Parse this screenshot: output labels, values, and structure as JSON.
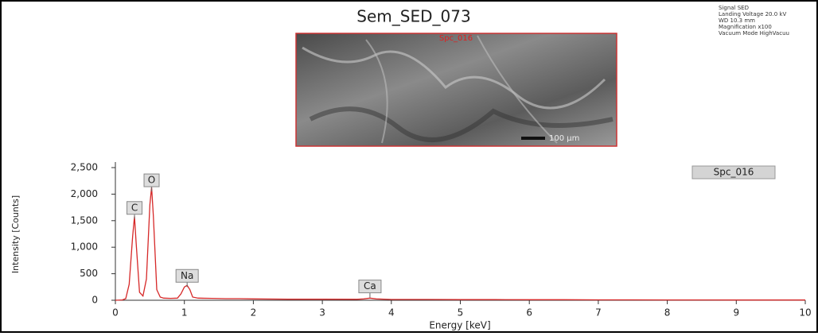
{
  "chart_data": {
    "type": "line",
    "title": "Sem_SED_073",
    "info": [
      "Signal SED",
      "Landing Voltage 20.0 kV",
      "WD 10.3 mm",
      "Magnification x100",
      "Vacuum Mode HighVacuu"
    ],
    "image_label": "Spc_016",
    "scale_bar": "100 µm",
    "x_label": "Energy [keV]",
    "y_label": "Intensity [Counts]",
    "x": [
      0,
      0.1,
      0.15,
      0.2,
      0.25,
      0.277,
      0.3,
      0.35,
      0.4,
      0.45,
      0.5,
      0.525,
      0.55,
      0.6,
      0.65,
      0.7,
      0.8,
      0.9,
      0.95,
      1.0,
      1.04,
      1.08,
      1.12,
      1.2,
      1.4,
      1.6,
      1.8,
      2.0,
      2.5,
      3.0,
      3.5,
      3.6,
      3.69,
      3.78,
      4.0,
      4.5,
      5.0,
      5.5,
      6.0,
      6.5,
      7.0,
      7.5,
      8.0,
      8.5,
      9.0,
      9.5,
      10.0
    ],
    "series": [
      {
        "name": "Spc_016",
        "color": "#d62828",
        "values": [
          0,
          5,
          30,
          300,
          1200,
          1580,
          1100,
          150,
          80,
          400,
          1800,
          2130,
          1600,
          200,
          60,
          40,
          35,
          40,
          120,
          250,
          280,
          200,
          60,
          40,
          35,
          30,
          30,
          25,
          20,
          20,
          18,
          25,
          40,
          25,
          15,
          15,
          12,
          12,
          10,
          10,
          8,
          8,
          6,
          6,
          5,
          5,
          5
        ]
      }
    ],
    "annotations": [
      {
        "text": "C",
        "x": 0.277,
        "y": 1740
      },
      {
        "text": "O",
        "x": 0.525,
        "y": 2260
      },
      {
        "text": "Na",
        "x": 1.04,
        "y": 460
      },
      {
        "text": "Ca",
        "x": 3.69,
        "y": 260
      }
    ],
    "xlim": [
      0,
      10
    ],
    "xticks": [
      0,
      1,
      2,
      3,
      4,
      5,
      6,
      7,
      8,
      9,
      10
    ],
    "ylim": [
      0,
      2500
    ],
    "yticks": [
      0,
      500,
      {
        "value": 1000,
        "label": "1,000"
      },
      {
        "value": 1500,
        "label": "1,500"
      },
      {
        "value": 2000,
        "label": "2,000"
      },
      {
        "value": 2500,
        "label": "2,500"
      }
    ]
  }
}
